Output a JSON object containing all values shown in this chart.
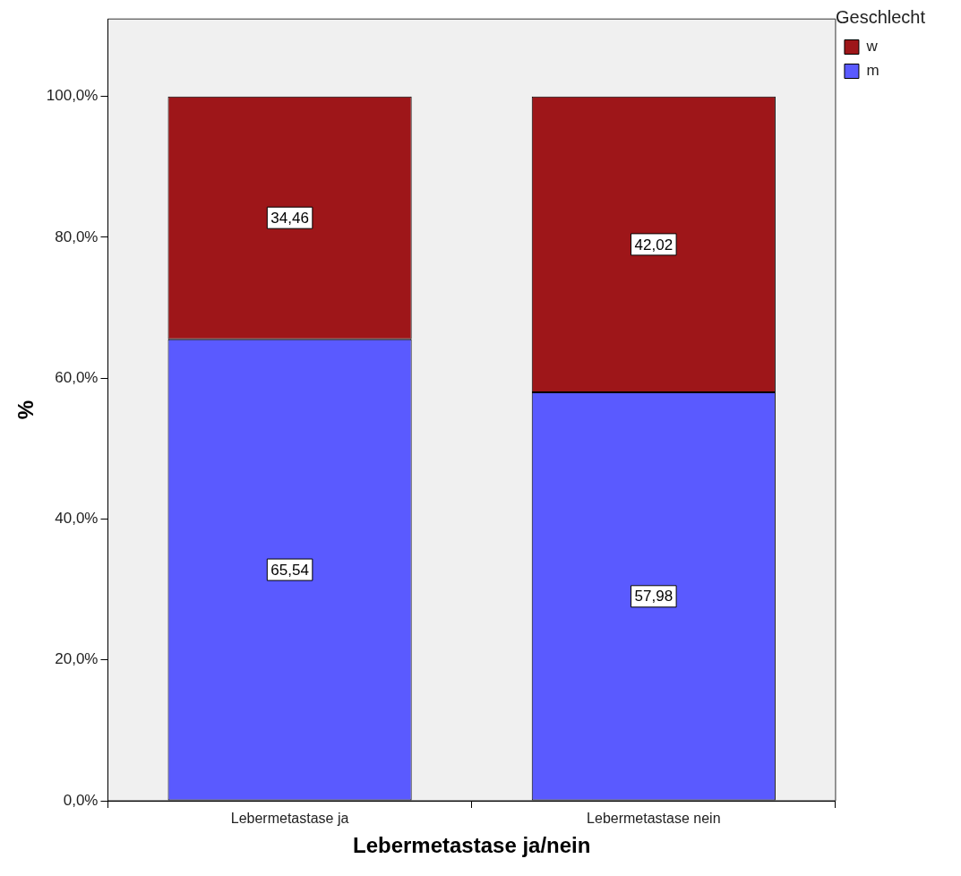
{
  "chart_data": {
    "type": "bar",
    "stacked": true,
    "xlabel": "Lebermetastase ja/nein",
    "ylabel": "%",
    "legend_title": "Geschlecht",
    "legend": "top right",
    "grid": false,
    "categories": [
      "Lebermetastase ja",
      "Lebermetastase nein"
    ],
    "series": [
      {
        "name": "m",
        "color": "#5a5aff",
        "values": [
          65.54,
          57.98
        ],
        "value_labels": [
          "65,54",
          "57,98"
        ]
      },
      {
        "name": "w",
        "color": "#9e1619",
        "values": [
          34.46,
          42.02
        ],
        "value_labels": [
          "34,46",
          "42,02"
        ]
      }
    ],
    "ylim": [
      0,
      111
    ],
    "yticks": [
      {
        "value": 0,
        "label": "0,0%"
      },
      {
        "value": 20,
        "label": "20,0%"
      },
      {
        "value": 40,
        "label": "40,0%"
      },
      {
        "value": 60,
        "label": "60,0%"
      },
      {
        "value": 80,
        "label": "80,0%"
      },
      {
        "value": 100,
        "label": "100,0%"
      }
    ]
  }
}
